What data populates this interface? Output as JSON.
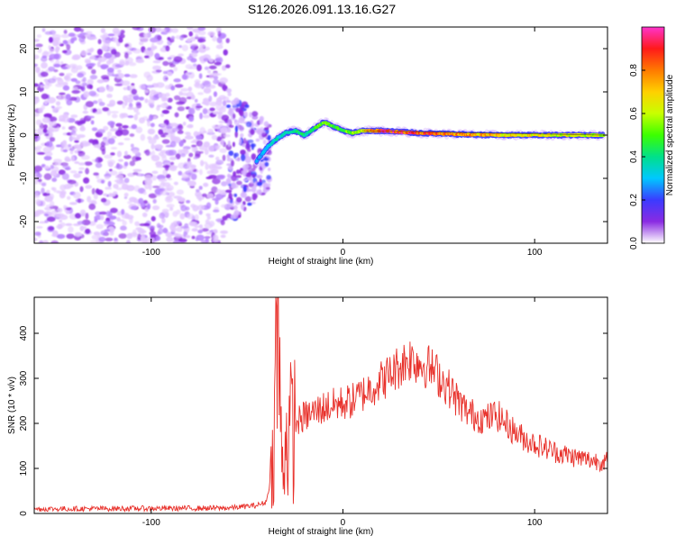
{
  "figure_title": "S126.2026.091.13.16.G27",
  "colors": {
    "snr_line": "#e8302a",
    "axis": "#000000"
  },
  "chart_data": [
    {
      "type": "heatmap",
      "title": "S126.2026.091.13.16.G27",
      "xlabel": "Height of straight line (km)",
      "ylabel": "Frequency (Hz)",
      "xlim": [
        -161,
        138
      ],
      "ylim": [
        -25,
        25
      ],
      "x_ticks": [
        -100,
        0,
        100
      ],
      "y_ticks": [
        -20,
        -10,
        0,
        10,
        20
      ],
      "x_tick_labels": [
        "-100",
        "0",
        "100"
      ],
      "y_tick_labels": [
        "-20",
        "-10",
        "0",
        "10",
        "20"
      ],
      "colorbar": {
        "label": "Normalized spectral amplitude",
        "range": [
          0,
          1
        ],
        "ticks": [
          0,
          0.2,
          0.4,
          0.6,
          0.8
        ],
        "tick_labels": [
          "0.0",
          "0.2",
          "0.4",
          "0.6",
          "0.8"
        ],
        "colormap": [
          "#ffffff",
          "#8a2be2",
          "#3b3bff",
          "#00c8ff",
          "#00e08a",
          "#3cff00",
          "#c8ff00",
          "#ffd000",
          "#ff7a00",
          "#ff1a1a",
          "#ff33cc"
        ]
      },
      "noise_region_x": [
        -161,
        -60
      ],
      "ridge": {
        "x": [
          -45,
          -40,
          -35,
          -30,
          -25,
          -20,
          -15,
          -10,
          -5,
          0,
          5,
          10,
          20,
          40,
          60,
          80,
          100,
          120,
          135
        ],
        "y": [
          -6,
          -3,
          -1,
          0.5,
          1,
          0,
          1.5,
          3,
          2,
          1,
          0.5,
          1,
          1,
          0.5,
          0.2,
          0,
          0,
          0,
          0
        ],
        "amplitude": [
          0.25,
          0.3,
          0.35,
          0.35,
          0.4,
          0.4,
          0.45,
          0.55,
          0.5,
          0.5,
          0.55,
          0.6,
          0.9,
          0.85,
          0.75,
          0.7,
          0.65,
          0.6,
          0.6
        ]
      }
    },
    {
      "type": "line",
      "series_name": "SNR",
      "xlabel": "Height of straight line (km)",
      "ylabel": "SNR (10 * v/v)",
      "xlim": [
        -161,
        138
      ],
      "ylim": [
        0,
        480
      ],
      "x_ticks": [
        -100,
        0,
        100
      ],
      "y_ticks": [
        0,
        100,
        200,
        300,
        400
      ],
      "x_tick_labels": [
        "-100",
        "0",
        "100"
      ],
      "y_tick_labels": [
        "0",
        "100",
        "200",
        "300",
        "400"
      ],
      "envelope": {
        "x": [
          -161,
          -60,
          -45,
          -40,
          -38,
          -36,
          -34,
          -32,
          -30,
          -25,
          -20,
          -15,
          -10,
          -5,
          0,
          5,
          10,
          15,
          20,
          25,
          30,
          35,
          40,
          45,
          50,
          55,
          60,
          65,
          70,
          75,
          80,
          85,
          90,
          95,
          100,
          110,
          120,
          130,
          138
        ],
        "y": [
          10,
          12,
          18,
          25,
          70,
          150,
          470,
          110,
          160,
          200,
          215,
          225,
          235,
          240,
          245,
          250,
          265,
          280,
          295,
          310,
          330,
          345,
          335,
          325,
          305,
          280,
          250,
          225,
          215,
          210,
          220,
          200,
          180,
          165,
          155,
          138,
          126,
          118,
          115
        ]
      },
      "noise_amplitude": 12
    }
  ]
}
